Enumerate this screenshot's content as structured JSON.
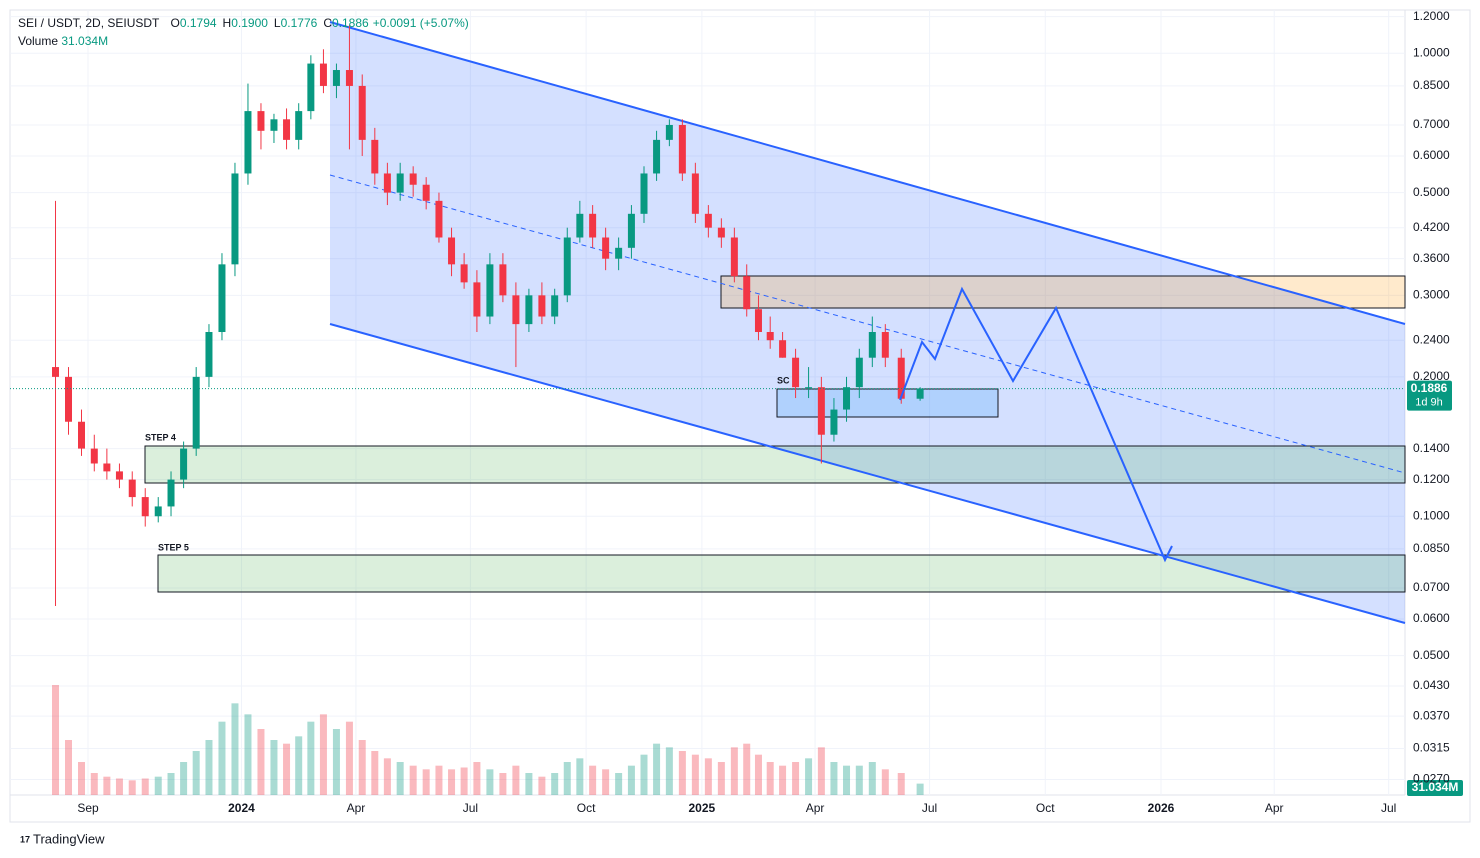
{
  "header": {
    "symbol": "SEI / USDT, 2D, SEIUSDT",
    "ohlc": [
      {
        "key": "O",
        "value": "0.1794"
      },
      {
        "key": "H",
        "value": "0.1900"
      },
      {
        "key": "L",
        "value": "0.1776"
      },
      {
        "key": "C",
        "value": "0.1886"
      }
    ],
    "change": "+0.0091 (+5.07%)",
    "volume_label": "Volume",
    "volume_value": "31.034M"
  },
  "chart_data": {
    "type": "candlestick",
    "log_scale": true,
    "grid": true,
    "ylim": [
      0.025,
      1.24
    ],
    "yticks": [
      {
        "value": 1.2,
        "label": "1.2000"
      },
      {
        "value": 1.0,
        "label": "1.0000"
      },
      {
        "value": 0.85,
        "label": "0.8500"
      },
      {
        "value": 0.7,
        "label": "0.7000"
      },
      {
        "value": 0.6,
        "label": "0.6000"
      },
      {
        "value": 0.5,
        "label": "0.5000"
      },
      {
        "value": 0.42,
        "label": "0.4200"
      },
      {
        "value": 0.36,
        "label": "0.3600"
      },
      {
        "value": 0.3,
        "label": "0.3000"
      },
      {
        "value": 0.24,
        "label": "0.2400"
      },
      {
        "value": 0.2,
        "label": "0.2000"
      },
      {
        "value": 0.14,
        "label": "0.1400"
      },
      {
        "value": 0.12,
        "label": "0.1200"
      },
      {
        "value": 0.1,
        "label": "0.1000"
      },
      {
        "value": 0.085,
        "label": "0.0850"
      },
      {
        "value": 0.07,
        "label": "0.0700"
      },
      {
        "value": 0.06,
        "label": "0.0600"
      },
      {
        "value": 0.05,
        "label": "0.0500"
      },
      {
        "value": 0.043,
        "label": "0.0430"
      },
      {
        "value": 0.037,
        "label": "0.0370"
      },
      {
        "value": 0.0315,
        "label": "0.0315"
      },
      {
        "value": 0.027,
        "label": "0.0270"
      }
    ],
    "xticks": [
      {
        "value": "2023-09",
        "label": "Sep"
      },
      {
        "value": "2024-01",
        "label": "2024"
      },
      {
        "value": "2024-04",
        "label": "Apr"
      },
      {
        "value": "2024-07",
        "label": "Jul"
      },
      {
        "value": "2024-10",
        "label": "Oct"
      },
      {
        "value": "2025-01",
        "label": "2025"
      },
      {
        "value": "2025-04",
        "label": "Apr"
      },
      {
        "value": "2025-07",
        "label": "Jul"
      },
      {
        "value": "2025-10",
        "label": "Oct"
      },
      {
        "value": "2026-01",
        "label": "2026"
      },
      {
        "value": "2026-04",
        "label": "Apr"
      },
      {
        "value": "2026-07",
        "label": "Jul"
      }
    ],
    "up_color": "#089981",
    "down_color": "#f23645",
    "x": [
      "2023-08",
      "2023-08",
      "2023-08",
      "2023-09",
      "2023-09",
      "2023-09",
      "2023-10",
      "2023-10",
      "2023-10",
      "2023-11",
      "2023-11",
      "2023-11",
      "2023-12",
      "2023-12",
      "2023-12",
      "2024-01",
      "2024-01",
      "2024-01",
      "2024-02",
      "2024-02",
      "2024-02",
      "2024-03",
      "2024-03",
      "2024-03",
      "2024-04",
      "2024-04",
      "2024-04",
      "2024-05",
      "2024-05",
      "2024-05",
      "2024-06",
      "2024-06",
      "2024-06",
      "2024-07",
      "2024-07",
      "2024-07",
      "2024-08",
      "2024-08",
      "2024-08",
      "2024-09",
      "2024-09",
      "2024-09",
      "2024-10",
      "2024-10",
      "2024-10",
      "2024-11",
      "2024-11",
      "2024-11",
      "2024-12",
      "2024-12",
      "2024-12",
      "2025-01",
      "2025-01",
      "2025-01",
      "2025-02",
      "2025-02",
      "2025-02",
      "2025-03",
      "2025-03",
      "2025-03",
      "2025-04",
      "2025-04",
      "2025-04",
      "2025-05",
      "2025-05",
      "2025-05",
      "2025-06",
      "2025-06"
    ],
    "open": [
      0.21,
      0.2,
      0.16,
      0.14,
      0.13,
      0.125,
      0.12,
      0.11,
      0.1,
      0.105,
      0.12,
      0.14,
      0.2,
      0.25,
      0.35,
      0.55,
      0.75,
      0.68,
      0.72,
      0.65,
      0.75,
      0.95,
      0.85,
      0.92,
      0.85,
      0.65,
      0.55,
      0.5,
      0.55,
      0.52,
      0.48,
      0.4,
      0.35,
      0.32,
      0.27,
      0.35,
      0.3,
      0.26,
      0.3,
      0.27,
      0.3,
      0.4,
      0.45,
      0.4,
      0.36,
      0.38,
      0.45,
      0.55,
      0.65,
      0.7,
      0.55,
      0.45,
      0.42,
      0.4,
      0.33,
      0.28,
      0.25,
      0.24,
      0.22,
      0.19,
      0.19,
      0.15,
      0.17,
      0.19,
      0.22,
      0.25,
      0.22,
      0.1794
    ],
    "high": [
      0.48,
      0.21,
      0.17,
      0.15,
      0.14,
      0.13,
      0.125,
      0.115,
      0.11,
      0.125,
      0.145,
      0.21,
      0.26,
      0.37,
      0.58,
      0.86,
      0.78,
      0.74,
      0.76,
      0.78,
      0.99,
      1.02,
      0.95,
      1.15,
      0.9,
      0.69,
      0.58,
      0.58,
      0.57,
      0.54,
      0.5,
      0.42,
      0.37,
      0.34,
      0.37,
      0.37,
      0.32,
      0.31,
      0.32,
      0.31,
      0.42,
      0.48,
      0.47,
      0.42,
      0.4,
      0.47,
      0.57,
      0.68,
      0.72,
      0.72,
      0.58,
      0.47,
      0.44,
      0.42,
      0.35,
      0.3,
      0.27,
      0.25,
      0.23,
      0.21,
      0.2,
      0.18,
      0.2,
      0.23,
      0.27,
      0.26,
      0.23,
      0.19
    ],
    "low": [
      0.064,
      0.15,
      0.135,
      0.125,
      0.12,
      0.115,
      0.105,
      0.095,
      0.097,
      0.1,
      0.115,
      0.135,
      0.19,
      0.24,
      0.33,
      0.52,
      0.62,
      0.64,
      0.62,
      0.62,
      0.72,
      0.82,
      0.8,
      0.62,
      0.6,
      0.52,
      0.47,
      0.48,
      0.49,
      0.46,
      0.39,
      0.33,
      0.31,
      0.25,
      0.26,
      0.29,
      0.21,
      0.25,
      0.26,
      0.26,
      0.29,
      0.39,
      0.38,
      0.34,
      0.34,
      0.36,
      0.43,
      0.53,
      0.63,
      0.53,
      0.43,
      0.4,
      0.38,
      0.32,
      0.27,
      0.24,
      0.23,
      0.22,
      0.18,
      0.18,
      0.13,
      0.145,
      0.16,
      0.18,
      0.21,
      0.21,
      0.175,
      0.1776
    ],
    "close": [
      0.2,
      0.16,
      0.14,
      0.13,
      0.125,
      0.12,
      0.11,
      0.1,
      0.105,
      0.12,
      0.14,
      0.2,
      0.25,
      0.35,
      0.55,
      0.75,
      0.68,
      0.72,
      0.65,
      0.75,
      0.95,
      0.85,
      0.92,
      0.85,
      0.65,
      0.55,
      0.5,
      0.55,
      0.52,
      0.48,
      0.4,
      0.35,
      0.32,
      0.27,
      0.35,
      0.3,
      0.26,
      0.3,
      0.27,
      0.3,
      0.4,
      0.45,
      0.4,
      0.36,
      0.38,
      0.45,
      0.55,
      0.65,
      0.7,
      0.55,
      0.45,
      0.42,
      0.4,
      0.33,
      0.28,
      0.25,
      0.24,
      0.22,
      0.19,
      0.19,
      0.15,
      0.17,
      0.19,
      0.22,
      0.25,
      0.22,
      0.1794,
      0.1886
    ],
    "volume": [
      300,
      150,
      90,
      60,
      50,
      45,
      40,
      45,
      50,
      60,
      90,
      120,
      150,
      200,
      250,
      220,
      180,
      150,
      140,
      160,
      200,
      220,
      180,
      200,
      150,
      120,
      100,
      90,
      80,
      70,
      80,
      70,
      75,
      90,
      70,
      60,
      80,
      60,
      50,
      60,
      90,
      100,
      80,
      70,
      60,
      80,
      110,
      140,
      130,
      120,
      110,
      100,
      90,
      130,
      140,
      110,
      90,
      80,
      90,
      100,
      130,
      90,
      80,
      80,
      90,
      70,
      60,
      31.034
    ],
    "last_price": {
      "value": 0.1886,
      "label": "0.1886",
      "countdown": "1d 9h"
    },
    "volume_tag": "31.034M",
    "annotations": {
      "step4": "STEP 4",
      "step5": "STEP 5",
      "sc": "SC"
    },
    "logo": "TradingView"
  }
}
